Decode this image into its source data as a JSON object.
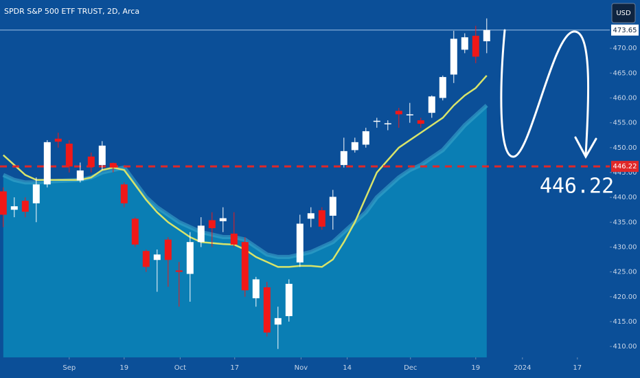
{
  "chart_data": {
    "type": "candlestick",
    "title": "SPDR S&P 500 ETF TRUST, 2D, Arca",
    "currency": "USD",
    "up_color": "#ffffff",
    "down_color": "#f01818",
    "open": [
      441.2,
      437.5,
      439.3,
      438.8,
      442.6,
      451.8,
      450.8,
      443.4,
      448.2,
      446.5,
      446.9,
      442.6,
      435.7,
      429.2,
      427.4,
      431.5,
      425.3,
      424.6,
      431,
      435.4,
      435.2,
      432.7,
      431,
      419.7,
      421.9,
      414.4,
      416.1,
      426.9,
      435.7,
      437.4,
      436.3,
      446.5,
      449.5,
      450.6,
      455.2,
      454.8,
      457.4,
      456.5,
      455.5,
      457,
      460,
      464.7,
      469.7,
      472.5,
      471.4
    ],
    "high": [
      442,
      440,
      440,
      444,
      451.5,
      453,
      451.5,
      447,
      449,
      451.3,
      447,
      443,
      436,
      429.5,
      429.5,
      432,
      427,
      433,
      436,
      437,
      438,
      437,
      432,
      424,
      423,
      418,
      423.5,
      436.5,
      438,
      438,
      441.5,
      452,
      452,
      454,
      456,
      455.5,
      458,
      459,
      456,
      460.5,
      464.5,
      473.5,
      473,
      474.5,
      476
    ],
    "low": [
      434,
      436,
      436,
      435,
      442,
      450,
      445,
      443,
      445,
      445.5,
      445,
      438,
      430,
      425,
      421,
      422,
      418,
      419,
      430,
      430,
      433,
      430,
      420,
      418,
      412,
      409.5,
      415,
      426,
      434,
      433.5,
      433.5,
      446,
      449,
      450,
      454,
      453.5,
      454,
      455,
      454,
      456,
      459.5,
      463,
      469,
      467,
      469
    ],
    "close": [
      436.5,
      438.2,
      437.1,
      442.6,
      451.1,
      451.2,
      446.2,
      445.4,
      446.1,
      450.4,
      446,
      438.8,
      430.5,
      426,
      428.5,
      427.4,
      425,
      431,
      434.3,
      433.8,
      435.8,
      430.5,
      421.3,
      423.5,
      412.8,
      415.7,
      422.6,
      434.7,
      436.8,
      434.1,
      440.1,
      449.3,
      451.1,
      453.3,
      455.4,
      454.9,
      456.7,
      456.7,
      454.8,
      460.3,
      464.2,
      471.9,
      472.2,
      468.3,
      473.65
    ],
    "series": [
      {
        "color": "#d8e46a",
        "values": [
          448.5,
          446.5,
          444.5,
          443.5,
          443.5,
          443.5,
          443.5,
          443.5,
          444,
          445.5,
          446,
          445.5,
          442.5,
          439.5,
          437,
          435,
          433.5,
          432,
          431,
          430.8,
          430.6,
          430.5,
          429.5,
          428,
          427,
          426,
          426,
          426.2,
          426.2,
          426,
          427.5,
          431,
          435,
          440,
          445,
          447.5,
          450,
          451.5,
          453,
          454.5,
          456,
          458.5,
          460.5,
          462,
          464.5
        ]
      },
      {
        "color": "#0a86b8",
        "values": [
          444.5,
          443.5,
          443,
          443,
          443.2,
          443.3,
          443.4,
          443.5,
          444,
          445,
          445.5,
          446,
          443,
          440,
          438,
          436.5,
          435,
          434,
          433,
          432.5,
          432,
          432,
          431.5,
          430,
          428.5,
          428,
          428,
          428.5,
          429,
          430,
          431,
          433,
          435,
          437,
          440,
          442,
          444,
          445.5,
          446.5,
          448,
          449.5,
          452,
          454.5,
          456.5,
          458.5
        ]
      }
    ],
    "hline": {
      "value": 446.22,
      "label": "446.22",
      "color": "#e02828"
    },
    "last_price": {
      "value": 473.65,
      "label": "473.65"
    },
    "xlim": [
      -0.3,
      55.2
    ],
    "xticks": [
      {
        "value": 6,
        "label": "Sep"
      },
      {
        "value": 11,
        "label": "19"
      },
      {
        "value": 16.1,
        "label": "Oct"
      },
      {
        "value": 21.06,
        "label": "17"
      },
      {
        "value": 27.1,
        "label": "Nov"
      },
      {
        "value": 31.3,
        "label": "14"
      },
      {
        "value": 37.06,
        "label": "Dec"
      },
      {
        "value": 43,
        "label": "19"
      },
      {
        "value": 47.25,
        "label": "2024"
      },
      {
        "value": 52.25,
        "label": "17"
      }
    ],
    "ylim": [
      407.8,
      479.7
    ],
    "yticks": [
      {
        "value": 410,
        "label": "410.00"
      },
      {
        "value": 415,
        "label": "415.00"
      },
      {
        "value": 420,
        "label": "420.00"
      },
      {
        "value": 425,
        "label": "425.00"
      },
      {
        "value": 430,
        "label": "430.00"
      },
      {
        "value": 435,
        "label": "435.00"
      },
      {
        "value": 440,
        "label": "440.00"
      },
      {
        "value": 445,
        "label": "445.00"
      },
      {
        "value": 450,
        "label": "450.00"
      },
      {
        "value": 455,
        "label": "455.00"
      },
      {
        "value": 460,
        "label": "460.00"
      },
      {
        "value": 465,
        "label": "465.00"
      },
      {
        "value": 470,
        "label": "470.00"
      }
    ]
  }
}
